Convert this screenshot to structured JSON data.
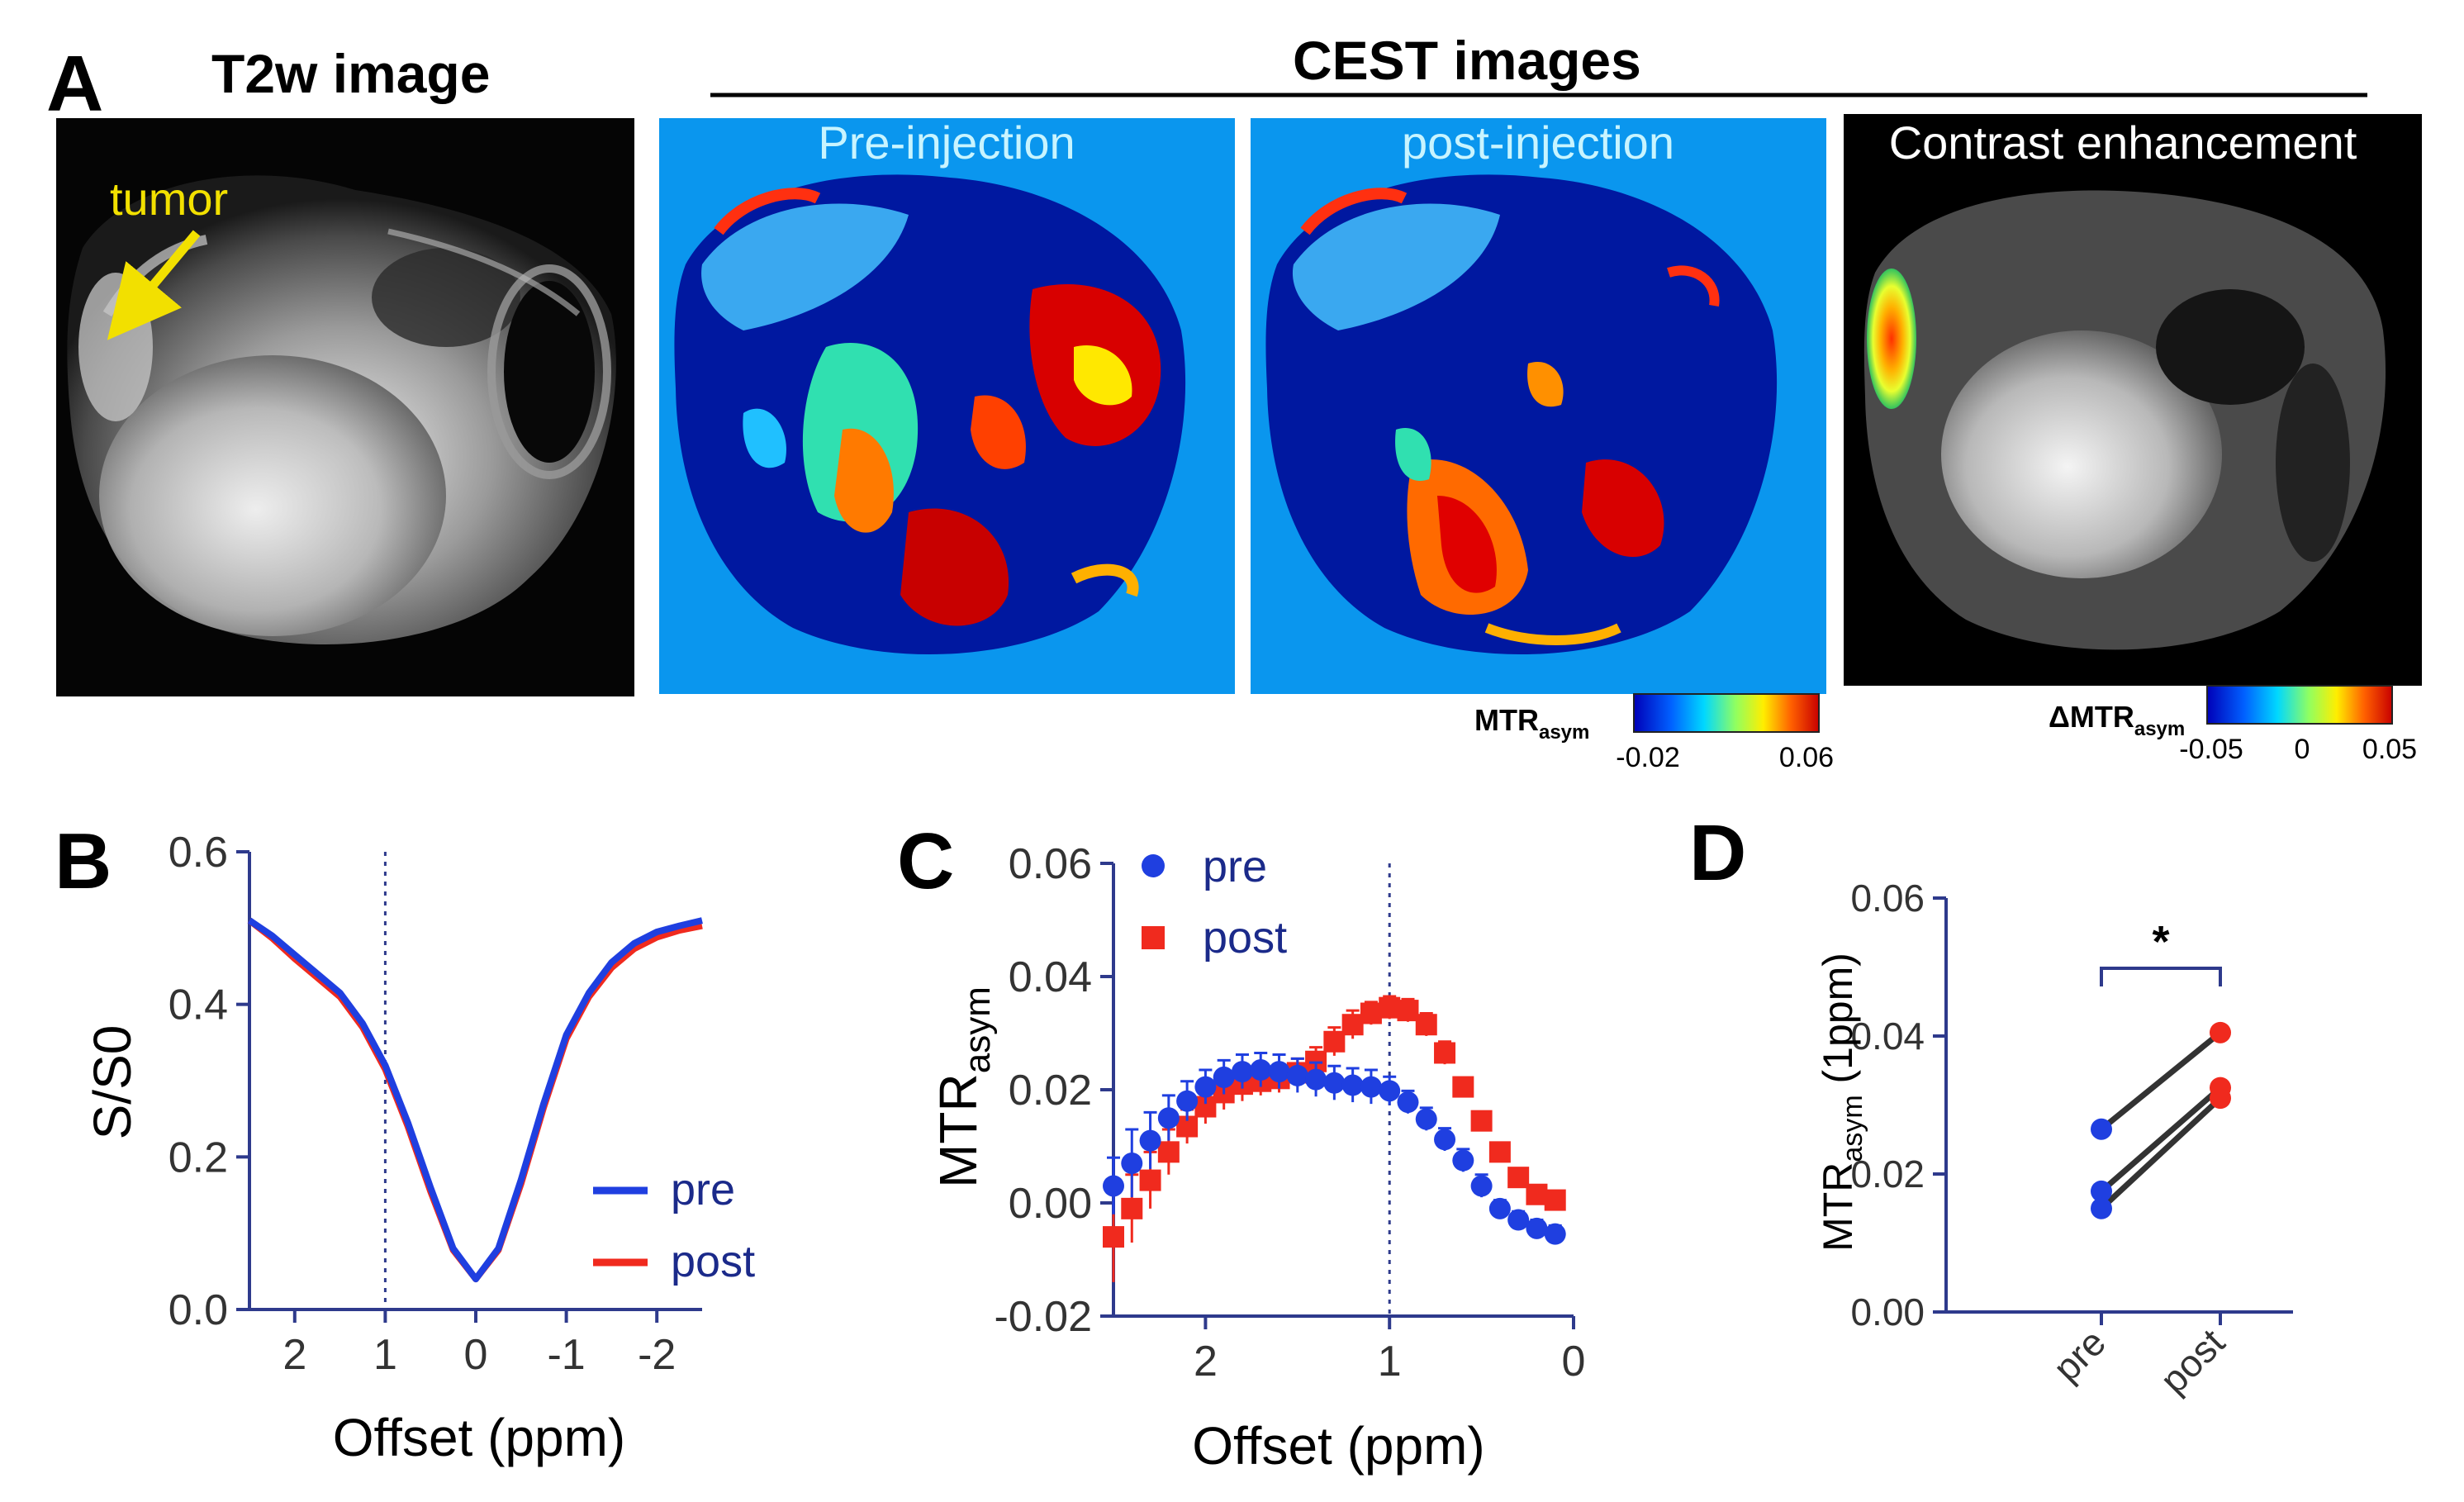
{
  "panel_a": {
    "letter": "A",
    "t2w_title": "T2w image",
    "cest_title": "CEST images",
    "tumor_label": "tumor",
    "images": [
      {
        "label": "Pre-injection"
      },
      {
        "label": "post-injection"
      },
      {
        "label": "Contrast enhancement"
      }
    ],
    "colorbar1": {
      "label_main": "MTR",
      "label_sub": "asym",
      "min": "-0.02",
      "max": "0.06"
    },
    "colorbar2": {
      "label_main": "ΔMTR",
      "label_sub": "asym",
      "min": "-0.05",
      "mid": "0",
      "max": "0.05"
    }
  },
  "panel_b": {
    "letter": "B",
    "legend_pre": "pre",
    "legend_post": "post"
  },
  "panel_c": {
    "letter": "C",
    "legend_pre": "pre",
    "legend_post": "post"
  },
  "panel_d": {
    "letter": "D",
    "significance": "*"
  },
  "colors": {
    "pre": "#1f3fe0",
    "post": "#f02a1e",
    "axis": "#2e3a8c",
    "cest_bg": "#0a96ee",
    "tumor_label": "#f2e000"
  },
  "chart_data": [
    {
      "id": "B",
      "type": "line",
      "title": "",
      "xlabel": "Offset (ppm)",
      "ylabel": "S/S0",
      "xlim": [
        2.5,
        -2.5
      ],
      "ylim": [
        0,
        0.6
      ],
      "x_ticks": [
        "2",
        "1",
        "0",
        "-1",
        "-2"
      ],
      "y_ticks": [
        "0.0",
        "0.2",
        "0.4",
        "0.6"
      ],
      "reference_line_x": 1,
      "x": [
        2.5,
        2.25,
        2.0,
        1.75,
        1.5,
        1.25,
        1.0,
        0.75,
        0.5,
        0.25,
        0.0,
        -0.25,
        -0.5,
        -0.75,
        -1.0,
        -1.25,
        -1.5,
        -1.75,
        -2.0,
        -2.25,
        -2.5
      ],
      "series": [
        {
          "name": "pre",
          "values": [
            0.51,
            0.49,
            0.465,
            0.44,
            0.415,
            0.375,
            0.32,
            0.245,
            0.16,
            0.08,
            0.04,
            0.08,
            0.17,
            0.27,
            0.36,
            0.415,
            0.455,
            0.48,
            0.495,
            0.503,
            0.51
          ]
        },
        {
          "name": "post",
          "values": [
            0.51,
            0.487,
            0.46,
            0.435,
            0.41,
            0.37,
            0.315,
            0.24,
            0.155,
            0.078,
            0.04,
            0.078,
            0.165,
            0.265,
            0.355,
            0.41,
            0.448,
            0.473,
            0.488,
            0.497,
            0.503
          ]
        }
      ]
    },
    {
      "id": "C",
      "type": "scatter",
      "title": "",
      "xlabel": "Offset (ppm)",
      "ylabel_main": "MTR",
      "ylabel_sub": "asym",
      "xlim": [
        2.5,
        0
      ],
      "ylim": [
        -0.02,
        0.06
      ],
      "x_ticks": [
        "2",
        "1",
        "0"
      ],
      "y_ticks": [
        "-0.02",
        "0.00",
        "0.02",
        "0.04",
        "0.06"
      ],
      "reference_line_x": 1,
      "x": [
        2.5,
        2.4,
        2.3,
        2.2,
        2.1,
        2.0,
        1.9,
        1.8,
        1.7,
        1.6,
        1.5,
        1.4,
        1.3,
        1.2,
        1.1,
        1.0,
        0.9,
        0.8,
        0.7,
        0.6,
        0.5,
        0.4,
        0.3,
        0.2,
        0.1
      ],
      "series": [
        {
          "name": "pre",
          "values": [
            0.003,
            0.007,
            0.011,
            0.015,
            0.018,
            0.0205,
            0.0222,
            0.0232,
            0.0235,
            0.0232,
            0.0225,
            0.0218,
            0.0212,
            0.0208,
            0.0205,
            0.0198,
            0.0178,
            0.0148,
            0.0112,
            0.0075,
            0.003,
            -0.001,
            -0.003,
            -0.0045,
            -0.0055
          ],
          "errors": [
            0.005,
            0.006,
            0.005,
            0.004,
            0.0035,
            0.003,
            0.003,
            0.003,
            0.003,
            0.003,
            0.003,
            0.003,
            0.003,
            0.003,
            0.003,
            0.0025,
            0.002,
            0.002,
            0.002,
            0.002,
            0.002,
            0.0015,
            0.0015,
            0.0015,
            0.0015
          ]
        },
        {
          "name": "post",
          "values": [
            -0.006,
            -0.001,
            0.004,
            0.009,
            0.0135,
            0.017,
            0.0195,
            0.021,
            0.0215,
            0.022,
            0.023,
            0.025,
            0.0285,
            0.0315,
            0.0335,
            0.0345,
            0.034,
            0.0315,
            0.0265,
            0.0205,
            0.0145,
            0.009,
            0.0045,
            0.0015,
            0.0005
          ],
          "errors": [
            0.008,
            0.006,
            0.005,
            0.004,
            0.003,
            0.003,
            0.003,
            0.003,
            0.0025,
            0.0025,
            0.0025,
            0.0025,
            0.0025,
            0.0025,
            0.002,
            0.002,
            0.002,
            0.002,
            0.002,
            0.0015,
            0.0015,
            0.0015,
            0.0015,
            0.0015,
            0.0015
          ]
        }
      ]
    },
    {
      "id": "D",
      "type": "scatter",
      "title": "",
      "xlabel": "",
      "ylabel_main": "MTR",
      "ylabel_sub": "asym",
      "ylabel_suffix": " (1ppm)",
      "categories": [
        "pre",
        "post"
      ],
      "ylim": [
        0,
        0.06
      ],
      "y_ticks": [
        "0.00",
        "0.02",
        "0.04",
        "0.06"
      ],
      "pairs": [
        [
          0.0265,
          0.0405
        ],
        [
          0.0175,
          0.0325
        ],
        [
          0.015,
          0.031
        ]
      ],
      "significance": "*"
    }
  ]
}
